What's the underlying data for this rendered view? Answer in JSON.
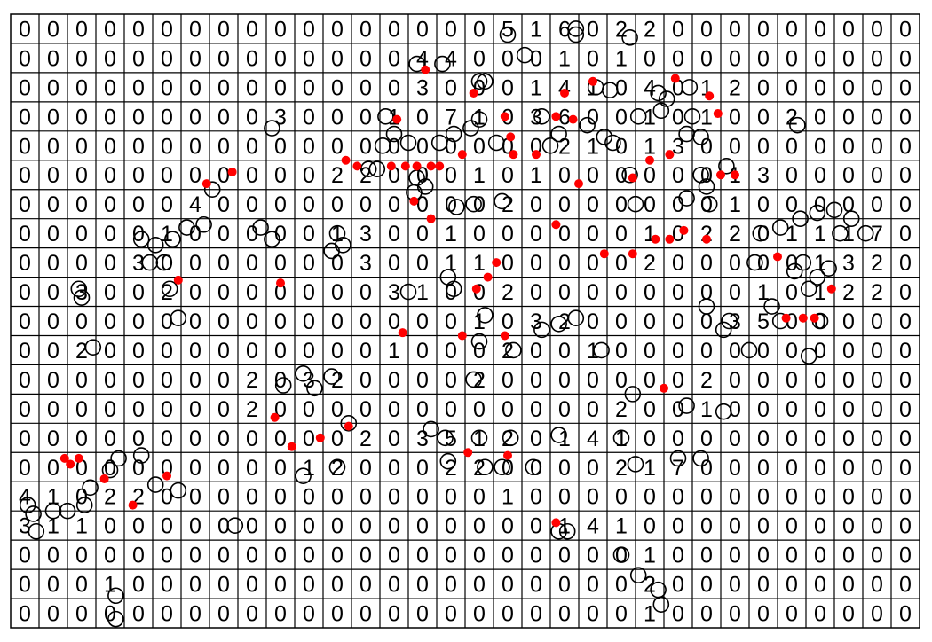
{
  "chart_data": {
    "type": "scatter",
    "xlim": [
      0,
      32
    ],
    "ylim": [
      0,
      21
    ],
    "cells": [
      [
        0,
        0,
        0,
        0,
        0,
        0,
        0,
        0,
        0,
        0,
        0,
        0,
        0,
        0,
        0,
        0,
        0,
        5,
        1,
        6,
        0,
        2,
        2,
        0,
        0,
        0,
        0,
        0,
        0,
        0,
        0,
        0
      ],
      [
        0,
        0,
        0,
        0,
        0,
        0,
        0,
        0,
        0,
        0,
        0,
        0,
        0,
        0,
        4,
        4,
        0,
        0,
        0,
        1,
        0,
        1,
        0,
        0,
        0,
        0,
        0,
        0,
        0,
        0,
        0,
        0
      ],
      [
        0,
        0,
        0,
        0,
        0,
        0,
        0,
        0,
        0,
        0,
        0,
        0,
        0,
        0,
        3,
        0,
        0,
        0,
        1,
        4,
        1,
        0,
        4,
        0,
        1,
        2,
        0,
        0,
        0,
        0,
        0,
        0
      ],
      [
        0,
        0,
        0,
        0,
        0,
        0,
        0,
        0,
        0,
        3,
        0,
        0,
        0,
        1,
        0,
        7,
        1,
        0,
        3,
        6,
        0,
        0,
        1,
        0,
        1,
        0,
        0,
        2,
        0,
        0,
        0,
        0
      ],
      [
        0,
        0,
        0,
        0,
        0,
        0,
        0,
        0,
        0,
        0,
        0,
        0,
        0,
        0,
        0,
        0,
        0,
        0,
        0,
        2,
        1,
        0,
        1,
        3,
        0,
        0,
        0,
        0,
        0,
        0,
        0,
        0
      ],
      [
        0,
        0,
        0,
        0,
        0,
        0,
        0,
        0,
        0,
        0,
        0,
        2,
        2,
        0,
        0,
        0,
        1,
        0,
        1,
        0,
        0,
        0,
        0,
        0,
        0,
        1,
        3,
        0,
        0,
        0,
        0,
        0
      ],
      [
        0,
        0,
        0,
        0,
        0,
        0,
        4,
        0,
        0,
        0,
        0,
        0,
        0,
        0,
        0,
        0,
        0,
        2,
        0,
        0,
        0,
        0,
        0,
        0,
        0,
        1,
        0,
        0,
        0,
        0,
        0,
        0
      ],
      [
        0,
        0,
        0,
        0,
        0,
        1,
        0,
        0,
        0,
        0,
        0,
        1,
        3,
        0,
        0,
        1,
        0,
        0,
        0,
        0,
        0,
        0,
        1,
        0,
        2,
        2,
        0,
        1,
        1,
        1,
        7,
        0
      ],
      [
        0,
        0,
        0,
        0,
        3,
        0,
        0,
        0,
        0,
        0,
        0,
        0,
        3,
        0,
        0,
        1,
        1,
        0,
        0,
        0,
        0,
        0,
        2,
        0,
        0,
        0,
        0,
        0,
        1,
        3,
        2,
        0
      ],
      [
        0,
        0,
        3,
        0,
        0,
        2,
        0,
        0,
        0,
        0,
        0,
        0,
        0,
        3,
        1,
        0,
        0,
        2,
        0,
        0,
        0,
        0,
        0,
        0,
        0,
        0,
        1,
        0,
        1,
        2,
        2,
        0
      ],
      [
        0,
        0,
        0,
        0,
        0,
        0,
        0,
        0,
        0,
        0,
        0,
        0,
        0,
        0,
        0,
        0,
        1,
        0,
        3,
        2,
        0,
        0,
        0,
        0,
        0,
        3,
        5,
        0,
        0,
        0,
        0,
        0
      ],
      [
        0,
        0,
        2,
        0,
        0,
        0,
        0,
        0,
        0,
        0,
        0,
        0,
        0,
        1,
        0,
        0,
        0,
        2,
        0,
        0,
        1,
        0,
        0,
        0,
        0,
        0,
        0,
        0,
        0,
        0,
        0,
        0
      ],
      [
        0,
        0,
        0,
        0,
        0,
        0,
        0,
        0,
        2,
        0,
        3,
        2,
        0,
        0,
        0,
        0,
        2,
        0,
        0,
        0,
        0,
        0,
        0,
        0,
        2,
        0,
        0,
        0,
        0,
        0,
        0,
        0
      ],
      [
        0,
        0,
        0,
        0,
        0,
        0,
        0,
        0,
        2,
        0,
        0,
        0,
        0,
        0,
        0,
        0,
        0,
        0,
        0,
        0,
        0,
        2,
        0,
        0,
        1,
        0,
        0,
        0,
        0,
        0,
        0,
        0
      ],
      [
        0,
        0,
        0,
        0,
        0,
        0,
        0,
        0,
        0,
        0,
        0,
        0,
        2,
        0,
        3,
        5,
        1,
        2,
        0,
        1,
        4,
        1,
        0,
        0,
        0,
        0,
        0,
        0,
        0,
        0,
        0,
        0
      ],
      [
        0,
        0,
        0,
        0,
        0,
        0,
        0,
        0,
        0,
        0,
        1,
        2,
        0,
        0,
        0,
        2,
        2,
        0,
        0,
        0,
        0,
        2,
        1,
        7,
        0,
        0,
        0,
        0,
        0,
        0,
        0,
        0
      ],
      [
        4,
        1,
        0,
        2,
        2,
        0,
        0,
        0,
        0,
        0,
        0,
        0,
        0,
        0,
        0,
        0,
        0,
        1,
        0,
        0,
        0,
        0,
        0,
        0,
        0,
        0,
        0,
        0,
        0,
        0,
        0,
        0
      ],
      [
        3,
        1,
        1,
        0,
        0,
        0,
        0,
        0,
        0,
        0,
        0,
        0,
        0,
        0,
        0,
        0,
        0,
        0,
        0,
        1,
        4,
        1,
        0,
        0,
        0,
        0,
        0,
        0,
        0,
        0,
        0,
        0
      ],
      [
        0,
        0,
        0,
        0,
        0,
        0,
        0,
        0,
        0,
        0,
        0,
        0,
        0,
        0,
        0,
        0,
        0,
        0,
        0,
        0,
        0,
        0,
        1,
        0,
        0,
        0,
        0,
        0,
        0,
        0,
        0,
        0
      ],
      [
        0,
        0,
        0,
        1,
        0,
        0,
        0,
        0,
        0,
        0,
        0,
        0,
        0,
        0,
        0,
        0,
        0,
        0,
        0,
        0,
        0,
        0,
        2,
        0,
        0,
        0,
        0,
        0,
        0,
        0,
        0,
        0
      ],
      [
        0,
        0,
        0,
        0,
        0,
        0,
        0,
        0,
        0,
        0,
        0,
        0,
        0,
        0,
        0,
        0,
        0,
        0,
        0,
        0,
        0,
        0,
        1,
        0,
        0,
        0,
        0,
        0,
        0,
        0,
        0,
        0
      ]
    ],
    "series": [
      {
        "color": "#000000",
        "marker": "open-circle",
        "x": [
          17.5,
          19.9,
          19.9,
          21.8,
          18.1,
          15.2,
          14.3,
          16.5,
          16.7,
          20.6,
          21.1,
          22.8,
          23.1,
          23.9,
          22.1,
          22.9,
          24.0,
          23.8,
          24.3,
          27.7,
          9.2,
          13.2,
          13.5,
          13.1,
          14.0,
          14.3,
          14.6,
          14.2,
          15.1,
          15.6,
          16.2,
          16.5,
          12.9,
          12.6,
          17.1,
          18.7,
          19.3,
          20.3,
          20.9,
          21.2,
          19.0,
          21.8,
          22.0,
          24.3,
          24.5,
          25.2,
          24.6,
          23.8,
          28.4,
          29.0,
          29.6,
          27.8,
          27.1,
          26.4,
          30.1,
          29.2,
          27.9,
          28.4,
          28.1,
          27.6,
          28.8,
          26.2,
          24.5,
          25.3,
          25.1,
          26.8,
          27.1,
          28.5,
          26.0,
          28.1,
          7.1,
          6.8,
          6.2,
          5.7,
          5.1,
          4.6,
          5.4,
          4.9,
          8.8,
          9.2,
          11.5,
          11.7,
          11.3,
          2.4,
          2.5,
          5.6,
          5.9,
          2.9,
          14.0,
          15.7,
          16.3,
          17.3,
          15.4,
          15.6,
          16.7,
          18.7,
          19.3,
          19.9,
          16.5,
          17.7,
          20.8,
          9.6,
          10.3,
          10.7,
          11.3,
          16.3,
          21.9,
          23.8,
          25.1,
          11.9,
          14.8,
          15.3,
          16.5,
          17.6,
          19.3,
          21.5,
          15.4,
          16.7,
          17.3,
          18.4,
          22.0,
          24.3,
          23.5,
          11.5,
          10.3,
          3.8,
          4.6,
          3.5,
          2.8,
          2.6,
          2.0,
          0.6,
          0.8,
          0.9,
          1.5,
          5.9,
          5.1,
          7.9,
          19.6,
          19.3,
          22.8,
          22.9,
          3.7,
          3.7,
          21.5,
          22.1
        ],
        "values": [
          20.3,
          20.5,
          20.3,
          20.2,
          19.6,
          19.3,
          19.3,
          18.7,
          18.7,
          18.5,
          18.4,
          18.3,
          18.1,
          18.5,
          17.5,
          17.7,
          17.5,
          16.9,
          16.8,
          17.2,
          17.1,
          17.5,
          16.9,
          16.5,
          16.6,
          15.4,
          15.1,
          14.9,
          16.6,
          16.9,
          17.1,
          17.4,
          15.7,
          15.7,
          16.6,
          17.5,
          16.9,
          17.2,
          16.8,
          16.6,
          16.5,
          15.5,
          14.5,
          15.5,
          15.1,
          15.8,
          14.5,
          14.7,
          14.2,
          14.3,
          14.0,
          14.0,
          13.7,
          13.5,
          13.5,
          13.5,
          12.5,
          12.0,
          11.6,
          12.2,
          12.3,
          12.5,
          11.0,
          10.5,
          10.2,
          11.0,
          10.5,
          10.5,
          9.5,
          9.3,
          15.0,
          13.8,
          13.7,
          13.3,
          13.1,
          13.3,
          12.5,
          12.5,
          13.7,
          13.3,
          13.5,
          13.1,
          12.9,
          11.6,
          11.3,
          11.6,
          10.6,
          9.6,
          11.5,
          14.4,
          14.5,
          14.6,
          12.0,
          11.6,
          10.7,
          10.2,
          10.4,
          10.6,
          9.8,
          9.5,
          9.5,
          8.3,
          8.7,
          8.2,
          8.6,
          8.5,
          8.0,
          7.6,
          7.4,
          7.0,
          6.8,
          6.5,
          6.5,
          6.5,
          6.6,
          6.5,
          5.7,
          5.5,
          5.5,
          5.5,
          5.6,
          5.8,
          5.8,
          5.5,
          5.2,
          5.8,
          5.9,
          5.4,
          4.8,
          4.2,
          4.0,
          4.2,
          3.9,
          3.3,
          4.0,
          4.7,
          4.9,
          3.5,
          3.3,
          3.3,
          1.3,
          0.8,
          0.3,
          1.1,
          2.5,
          1.8
        ]
      },
      {
        "color": "#ff0000",
        "marker": "filled-dot",
        "x": [
          14.6,
          16.3,
          19.5,
          20.5,
          23.4,
          24.6,
          24.9,
          13.6,
          17.4,
          19.2,
          19.8,
          17.6,
          17.7,
          18.5,
          11.8,
          12.2,
          13.4,
          13.9,
          14.3,
          14.8,
          15.1,
          15.9,
          20.0,
          21.9,
          22.5,
          23.2,
          25.0,
          25.5,
          7.8,
          6.9,
          14.2,
          14.8,
          19.2,
          20.9,
          21.9,
          22.7,
          23.2,
          23.7,
          24.5,
          27.0,
          17.1,
          16.8,
          16.4,
          9.5,
          5.9,
          28.9,
          27.3,
          27.9,
          28.3,
          13.8,
          15.9,
          17.4,
          23.0,
          9.3,
          9.9,
          10.9,
          11.9,
          16.1,
          17.5,
          1.9,
          2.1,
          2.4,
          3.3,
          5.5,
          4.3,
          19.2
        ],
        "values": [
          19.1,
          18.3,
          18.3,
          18.7,
          18.8,
          18.2,
          17.6,
          17.4,
          17.5,
          17.5,
          17.4,
          16.8,
          16.2,
          16.2,
          16.0,
          15.8,
          15.8,
          15.8,
          15.8,
          15.8,
          15.8,
          16.2,
          15.2,
          15.4,
          16.0,
          16.2,
          15.5,
          15.5,
          15.6,
          15.2,
          14.6,
          14.0,
          13.8,
          12.8,
          12.8,
          13.3,
          13.3,
          13.6,
          13.3,
          12.7,
          12.5,
          12.0,
          11.6,
          11.8,
          11.9,
          11.6,
          10.6,
          10.6,
          10.6,
          10.1,
          10.0,
          10.0,
          8.2,
          7.2,
          6.2,
          6.5,
          6.9,
          6.0,
          5.9,
          5.8,
          5.6,
          5.8,
          5.1,
          5.2,
          4.2,
          3.6
        ]
      }
    ]
  }
}
